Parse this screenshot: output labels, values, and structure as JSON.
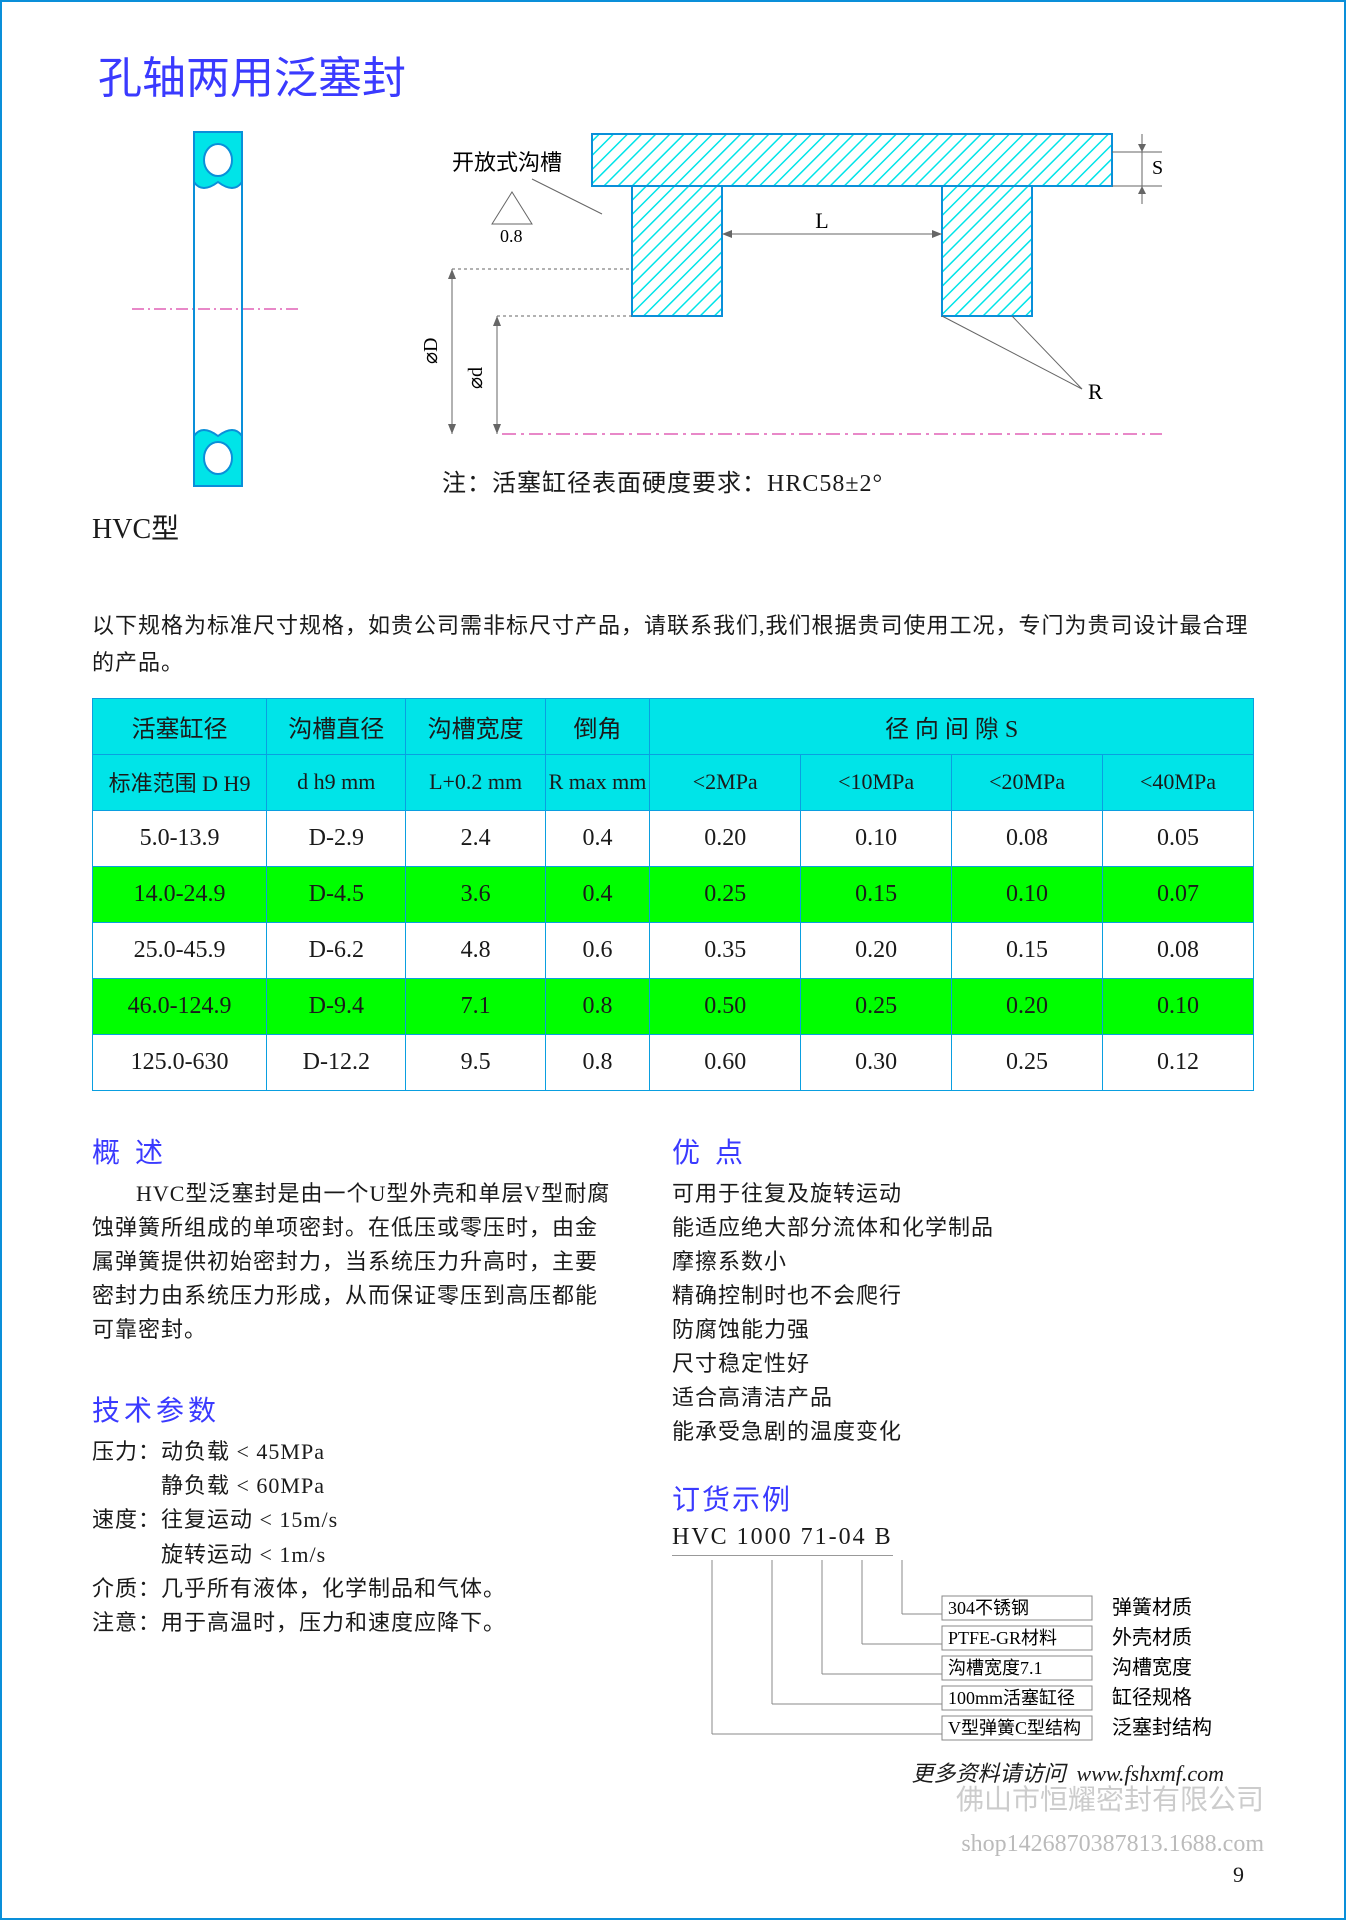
{
  "title": "孔轴两用泛塞封",
  "model_label": "HVC型",
  "diagram": {
    "groove_label": "开放式沟槽",
    "roughness": "0.8",
    "dim_D": "⌀D",
    "dim_d": "⌀d",
    "dim_L": "L",
    "dim_S": "S",
    "dim_R": "R",
    "colors": {
      "seal_fill": "#00e4e8",
      "seal_stroke": "#0a8fd9",
      "hatch": "#00e4e8",
      "outline": "#0a8fd9",
      "centerline": "#d01090"
    }
  },
  "note": "注：活塞缸径表面硬度要求：HRC58±2°",
  "intro": "以下规格为标准尺寸规格，如贵公司需非标尺寸产品，请联系我们,我们根据贵司使用工况，专门为贵司设计最合理的产品。",
  "table": {
    "header_row1": [
      "活塞缸径",
      "沟槽直径",
      "沟槽宽度",
      "倒角",
      "径 向 间 隙 S"
    ],
    "header_row2": [
      "标准范围 D  H9",
      "d  h9 mm",
      "L+0.2 mm",
      "R max mm",
      "<2MPa",
      "<10MPa",
      "<20MPa",
      "<40MPa"
    ],
    "rows": [
      [
        "5.0-13.9",
        "D-2.9",
        "2.4",
        "0.4",
        "0.20",
        "0.10",
        "0.08",
        "0.05"
      ],
      [
        "14.0-24.9",
        "D-4.5",
        "3.6",
        "0.4",
        "0.25",
        "0.15",
        "0.10",
        "0.07"
      ],
      [
        "25.0-45.9",
        "D-6.2",
        "4.8",
        "0.6",
        "0.35",
        "0.20",
        "0.15",
        "0.08"
      ],
      [
        "46.0-124.9",
        "D-9.4",
        "7.1",
        "0.8",
        "0.50",
        "0.25",
        "0.20",
        "0.10"
      ],
      [
        "125.0-630",
        "D-12.2",
        "9.5",
        "0.8",
        "0.60",
        "0.30",
        "0.25",
        "0.12"
      ]
    ],
    "col_widths_pct": [
      15,
      12,
      12,
      9,
      13,
      13,
      13,
      13
    ],
    "header_bg": "#00e4e8",
    "row_even_bg": "#ffffff",
    "row_odd_bg": "#00ff00",
    "border_color": "#0a9fe0"
  },
  "overview": {
    "heading": "概 述",
    "text": "HVC型泛塞封是由一个U型外壳和单层V型耐腐蚀弹簧所组成的单项密封。在低压或零压时，由金属弹簧提供初始密封力，当系统压力升高时，主要密封力由系统压力形成，从而保证零压到高压都能可靠密封。"
  },
  "tech": {
    "heading": "技术参数",
    "lines": [
      "压力：动负载 < 45MPa",
      "　　　静负载 < 60MPa",
      "速度：往复运动 < 15m/s",
      "　　　旋转运动 < 1m/s",
      "介质：几乎所有液体，化学制品和气体。",
      "注意：用于高温时，压力和速度应降下。"
    ]
  },
  "advantages": {
    "heading": "优 点",
    "items": [
      "可用于往复及旋转运动",
      "能适应绝大部分流体和化学制品",
      "摩擦系数小",
      "精确控制时也不会爬行",
      "防腐蚀能力强",
      "尺寸稳定性好",
      "适合高清洁产品",
      "能承受急剧的温度变化"
    ]
  },
  "order": {
    "heading": "订货示例",
    "code": "HVC 1000 71-04 B",
    "legend": [
      {
        "left": "304不锈钢",
        "right": "弹簧材质"
      },
      {
        "left": "PTFE-GR材料",
        "right": "外壳材质"
      },
      {
        "left": "沟槽宽度7.1",
        "right": "沟槽宽度"
      },
      {
        "left": "100mm活塞缸径",
        "right": "缸径规格"
      },
      {
        "left": "V型弹簧C型结构",
        "right": "泛塞封结构"
      }
    ]
  },
  "footer_link_label": "更多资料请访问",
  "footer_link_url": "www.fshxmf.com",
  "watermark1": "佛山市恒耀密封有限公司",
  "watermark2": "shop1426870387813.1688.com",
  "page_number": "9"
}
